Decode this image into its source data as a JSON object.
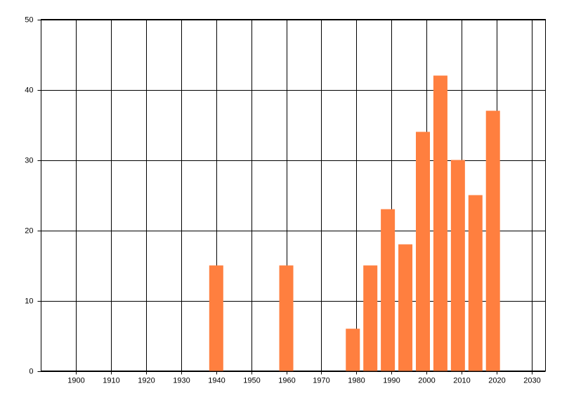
{
  "chart_data": {
    "type": "bar",
    "x": [
      1940,
      1960,
      1979,
      1984,
      1989,
      1994,
      1999,
      2004,
      2009,
      2014,
      2019
    ],
    "values": [
      15,
      15,
      6,
      15,
      23,
      18,
      34,
      42,
      30,
      25,
      37
    ],
    "color": "#ff7f3f",
    "xlim": [
      1890,
      2034
    ],
    "xticks": [
      1900,
      1910,
      1920,
      1930,
      1940,
      1950,
      1960,
      1970,
      1980,
      1990,
      2000,
      2010,
      2020,
      2030
    ],
    "ylim": [
      0,
      50
    ],
    "yticks": [
      0,
      10,
      20,
      30,
      40,
      50
    ],
    "grid": true
  }
}
